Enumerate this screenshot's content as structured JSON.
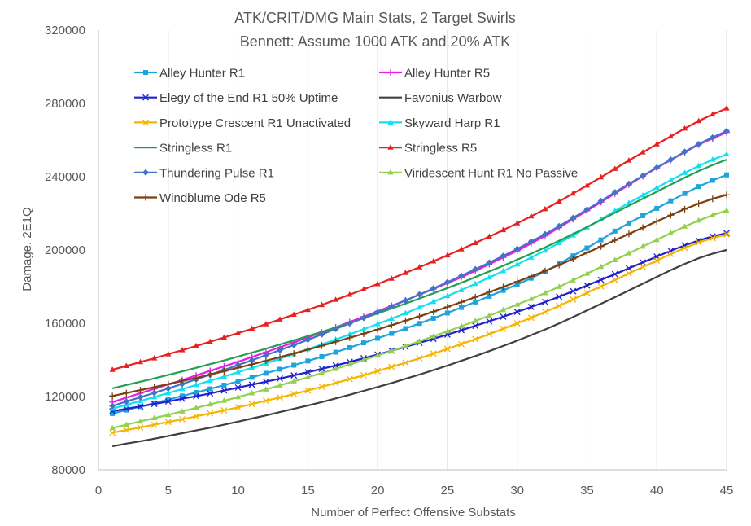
{
  "chart_data": {
    "type": "line",
    "title": [
      "ATK/CRIT/DMG Main Stats, 2 Target Swirls",
      "Bennett: Assume 1000 ATK and 20% ATK"
    ],
    "xlabel": "Number of Perfect Offensive Substats",
    "ylabel": "Damage. 2E1Q",
    "xlim": [
      0,
      45
    ],
    "ylim": [
      80000,
      320000
    ],
    "xticks": [
      0,
      5,
      10,
      15,
      20,
      25,
      30,
      35,
      40,
      45
    ],
    "yticks": [
      80000,
      120000,
      160000,
      200000,
      240000,
      280000,
      320000
    ],
    "grid": "vertical-only",
    "x": [
      1,
      2,
      3,
      4,
      5,
      6,
      7,
      8,
      9,
      10,
      11,
      12,
      13,
      14,
      15,
      16,
      17,
      18,
      19,
      20,
      21,
      22,
      23,
      24,
      25,
      26,
      27,
      28,
      29,
      30,
      31,
      32,
      33,
      34,
      35,
      36,
      37,
      38,
      39,
      40,
      41,
      42,
      43,
      44,
      45
    ],
    "series": [
      {
        "name": "Alley Hunter R1",
        "color": "#1ea4dc",
        "marker": "square",
        "values": [
          110700,
          112600,
          114500,
          116400,
          118300,
          120300,
          122200,
          124200,
          126200,
          128300,
          130500,
          132700,
          134900,
          137100,
          139400,
          141800,
          144200,
          146700,
          149300,
          151800,
          154400,
          157100,
          159900,
          162700,
          165600,
          168600,
          171600,
          174700,
          177900,
          181200,
          184600,
          188200,
          192400,
          196800,
          201100,
          205500,
          210300,
          214700,
          218700,
          222700,
          226800,
          230800,
          234600,
          238000,
          241000
        ]
      },
      {
        "name": "Alley Hunter R5",
        "color": "#e81ee8",
        "marker": "plus",
        "values": [
          117000,
          119400,
          121800,
          124200,
          126600,
          129000,
          131500,
          134000,
          136500,
          139000,
          141600,
          144200,
          146900,
          149500,
          152300,
          155000,
          157800,
          160700,
          163600,
          166500,
          169500,
          172500,
          175600,
          178700,
          181900,
          185100,
          188600,
          192200,
          195900,
          199500,
          203600,
          207700,
          212200,
          216800,
          221400,
          226100,
          230800,
          235600,
          240300,
          244800,
          249100,
          253400,
          257500,
          260900,
          264200
        ]
      },
      {
        "name": "Elegy of the End R1 50% Uptime",
        "color": "#2020cc",
        "marker": "x",
        "values": [
          112000,
          113300,
          114600,
          115900,
          117300,
          118800,
          120200,
          121700,
          123300,
          124900,
          126500,
          128100,
          129800,
          131500,
          133300,
          135100,
          137000,
          138900,
          140900,
          142900,
          145000,
          147100,
          149300,
          151500,
          153800,
          156200,
          158600,
          161100,
          163600,
          166200,
          168900,
          171600,
          174500,
          177500,
          180600,
          183700,
          186800,
          190000,
          193200,
          196400,
          199600,
          202500,
          205200,
          207400,
          209200
        ]
      },
      {
        "name": "Favonius Warbow",
        "color": "#404040",
        "marker": "none",
        "values": [
          92900,
          94300,
          95600,
          97000,
          98500,
          100000,
          101500,
          103000,
          104600,
          106300,
          108000,
          109700,
          111500,
          113300,
          115100,
          117000,
          119000,
          121000,
          123100,
          125200,
          127400,
          129700,
          132000,
          134400,
          136900,
          139500,
          142100,
          144800,
          147600,
          150500,
          153500,
          156600,
          159900,
          163400,
          167000,
          170600,
          174200,
          177900,
          181600,
          185300,
          189000,
          192400,
          195500,
          198000,
          200000
        ]
      },
      {
        "name": "Prototype Crescent R1 Unactivated",
        "color": "#f4b400",
        "marker": "x",
        "values": [
          100300,
          101700,
          103100,
          104600,
          106100,
          107600,
          109200,
          110800,
          112400,
          114100,
          115900,
          117700,
          119500,
          121400,
          123300,
          125300,
          127400,
          129500,
          131600,
          133900,
          136200,
          138500,
          140900,
          143400,
          146000,
          148600,
          151300,
          154100,
          157000,
          160000,
          163000,
          166200,
          169500,
          173000,
          176600,
          180100,
          183600,
          187200,
          190700,
          194200,
          197800,
          201100,
          204100,
          206500,
          208500
        ]
      },
      {
        "name": "Skyward Harp R1",
        "color": "#10e0f0",
        "marker": "triangle",
        "values": [
          113400,
          115500,
          117600,
          119700,
          121900,
          124100,
          126300,
          128600,
          130900,
          133300,
          135700,
          138100,
          140600,
          143200,
          145800,
          148400,
          151100,
          153900,
          156700,
          159600,
          162500,
          165500,
          168600,
          171700,
          174900,
          178100,
          181500,
          185000,
          188500,
          192100,
          195900,
          199700,
          203800,
          208000,
          212300,
          216700,
          221300,
          225700,
          229800,
          234000,
          238100,
          242100,
          245900,
          249300,
          252200
        ]
      },
      {
        "name": "Stringless R1",
        "color": "#20a050",
        "marker": "none",
        "values": [
          124500,
          126300,
          128100,
          129900,
          131800,
          133700,
          135700,
          137700,
          139700,
          141800,
          144000,
          146100,
          148400,
          150600,
          153000,
          155300,
          157800,
          160200,
          162800,
          165400,
          168000,
          170700,
          173500,
          176300,
          179200,
          182100,
          185200,
          188300,
          191400,
          194700,
          198000,
          201400,
          205000,
          208700,
          212500,
          216400,
          220300,
          224200,
          228000,
          231800,
          235700,
          239500,
          243100,
          246400,
          249300
        ]
      },
      {
        "name": "Stringless R5",
        "color": "#e82020",
        "marker": "triangle",
        "values": [
          134600,
          136700,
          138800,
          140900,
          143100,
          145300,
          147600,
          149900,
          152200,
          154600,
          157000,
          159500,
          162100,
          164700,
          167300,
          170000,
          172800,
          175600,
          178500,
          181400,
          184400,
          187500,
          190600,
          193800,
          197100,
          200400,
          203800,
          207300,
          210900,
          214600,
          218400,
          222300,
          226500,
          230800,
          235200,
          239700,
          244300,
          248900,
          253300,
          257700,
          262000,
          266300,
          270400,
          274000,
          277300
        ]
      },
      {
        "name": "Thundering Pulse R1",
        "color": "#4472c4",
        "marker": "diamond",
        "values": [
          114900,
          117300,
          119600,
          122000,
          124400,
          126900,
          129400,
          131900,
          134500,
          137200,
          139800,
          142600,
          145300,
          148100,
          151000,
          153900,
          156900,
          159900,
          162900,
          166000,
          169200,
          172400,
          175700,
          179000,
          182400,
          185900,
          189500,
          193100,
          196800,
          200600,
          204600,
          208600,
          213000,
          217500,
          222100,
          226700,
          231500,
          236100,
          240500,
          245000,
          249300,
          253600,
          257800,
          261400,
          264900
        ]
      },
      {
        "name": "Viridescent Hunt R1 No Passive",
        "color": "#92d050",
        "marker": "triangle",
        "values": [
          102800,
          104600,
          106400,
          108200,
          110000,
          111900,
          113800,
          115700,
          117700,
          119700,
          121800,
          123900,
          126100,
          128300,
          130500,
          132800,
          135100,
          137500,
          139900,
          142400,
          144900,
          147500,
          150200,
          152900,
          155600,
          158400,
          161300,
          164200,
          167200,
          170200,
          173300,
          176500,
          179900,
          183500,
          187100,
          190800,
          194500,
          198200,
          201900,
          205500,
          209200,
          212800,
          216100,
          219000,
          221500
        ]
      },
      {
        "name": "Windblume Ode R5",
        "color": "#7b3f10",
        "marker": "plus",
        "values": [
          120300,
          121900,
          123500,
          125100,
          126800,
          128500,
          130200,
          132000,
          133800,
          135700,
          137600,
          139500,
          141500,
          143500,
          145600,
          147700,
          149900,
          152100,
          154300,
          156600,
          159000,
          161400,
          163800,
          166300,
          168900,
          171500,
          174200,
          177000,
          179800,
          182700,
          185600,
          188600,
          191800,
          195100,
          198500,
          201900,
          205300,
          208800,
          212200,
          215600,
          219000,
          222300,
          225300,
          227900,
          230100
        ]
      }
    ]
  }
}
